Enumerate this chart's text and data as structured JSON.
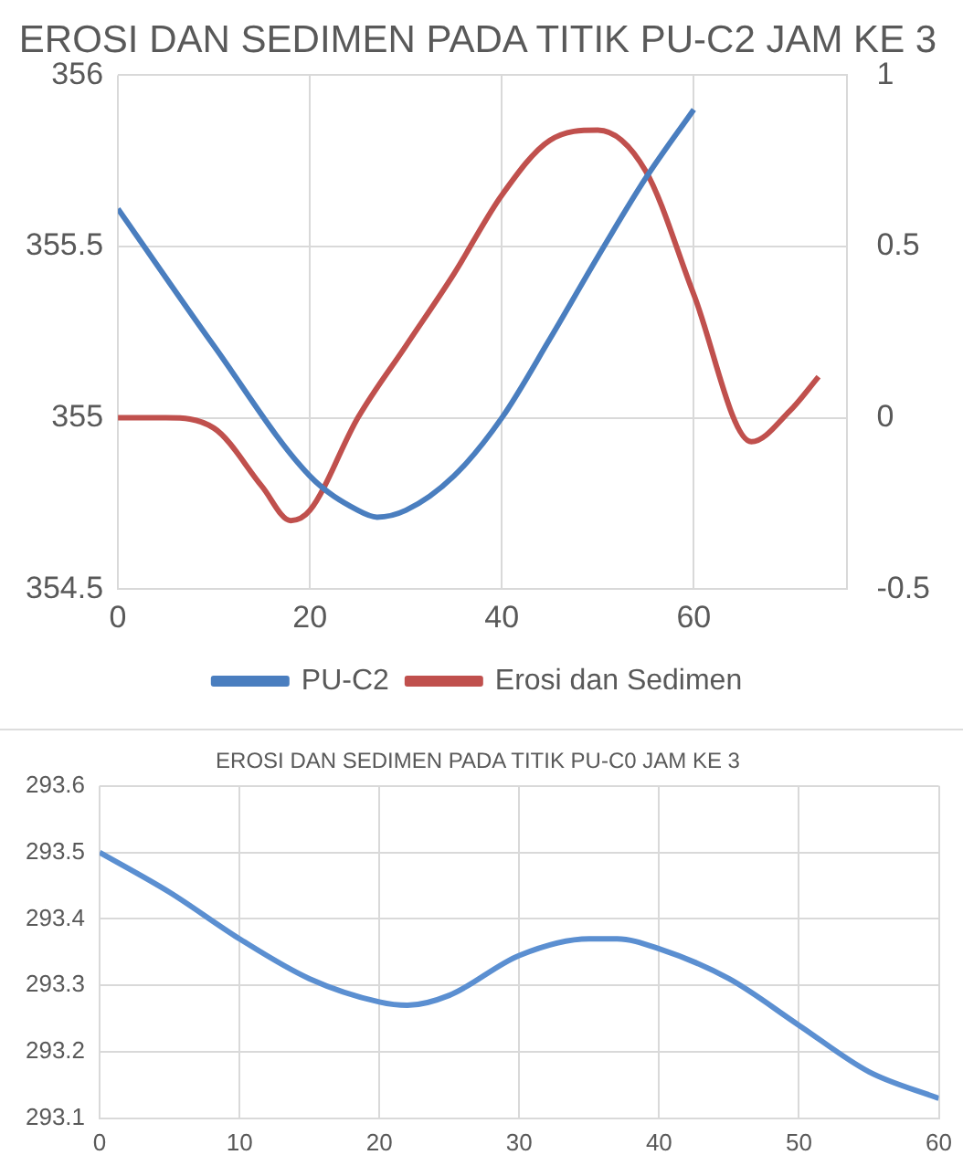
{
  "chart_data": [
    {
      "type": "line",
      "title": "EROSI DAN SEDIMEN PADA TITIK PU-C2 JAM KE 3",
      "xlim": [
        0,
        76
      ],
      "xticks": [
        0,
        20,
        40,
        60
      ],
      "ylim": [
        354.5,
        356
      ],
      "yticks": [
        354.5,
        355,
        355.5,
        356
      ],
      "y2lim": [
        -0.5,
        1
      ],
      "y2ticks": [
        -0.5,
        0,
        0.5,
        1
      ],
      "grid": true,
      "legend": "bottom",
      "series": [
        {
          "name": "PU-C2",
          "color": "#4a7ebf",
          "x": [
            0,
            10,
            20,
            25,
            27,
            30,
            35,
            40,
            45,
            50,
            55,
            60
          ],
          "values": [
            355.61,
            355.21,
            354.83,
            354.73,
            354.71,
            354.73,
            354.83,
            355.0,
            355.23,
            355.47,
            355.7,
            355.9
          ]
        },
        {
          "name": "Erosi dan Sedimen",
          "color": "#c0504d",
          "axis": "y2",
          "x": [
            0,
            5,
            10,
            15,
            18,
            20,
            25,
            30,
            35,
            40,
            45,
            50,
            55,
            60,
            66,
            70,
            73
          ],
          "values": [
            0,
            0,
            -0.03,
            -0.2,
            -0.3,
            -0.27,
            0,
            0.21,
            0.42,
            0.65,
            0.81,
            0.84,
            0.72,
            0.36,
            -0.07,
            0.02,
            0.12
          ]
        }
      ]
    },
    {
      "type": "line",
      "title": "EROSI DAN SEDIMEN PADA TITIK PU-C0 JAM KE 3",
      "xlim": [
        0,
        60
      ],
      "xticks": [
        0,
        10,
        20,
        30,
        40,
        50,
        60
      ],
      "ylim": [
        293.1,
        293.6
      ],
      "yticks": [
        293.1,
        293.2,
        293.3,
        293.4,
        293.5,
        293.6
      ],
      "grid": true,
      "series": [
        {
          "color": "#5b8fd1",
          "x": [
            0,
            5,
            10,
            15,
            20,
            22,
            25,
            30,
            35,
            37,
            40,
            45,
            50,
            55,
            60
          ],
          "values": [
            293.5,
            293.44,
            293.37,
            293.31,
            293.275,
            293.27,
            293.285,
            293.345,
            293.37,
            293.37,
            293.355,
            293.31,
            293.24,
            293.17,
            293.13
          ]
        }
      ]
    }
  ]
}
